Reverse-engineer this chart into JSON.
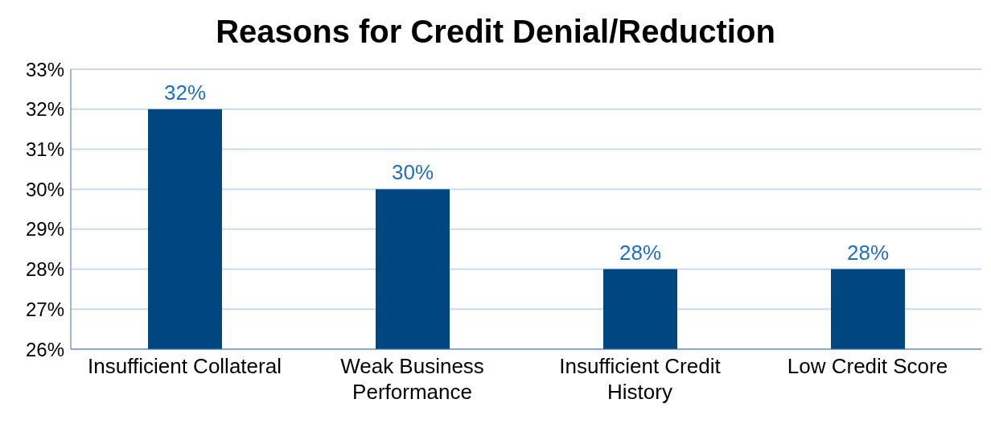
{
  "chart_data": {
    "type": "bar",
    "title": "Reasons for Credit Denial/Reduction",
    "categories": [
      "Insufficient Collateral",
      "Weak Business Performance",
      "Insufficient Credit History",
      "Low Credit Score"
    ],
    "values": [
      32,
      30,
      28,
      28
    ],
    "color": "#00467f",
    "value_labels": [
      "32%",
      "30%",
      "28%",
      "28%"
    ],
    "ylim": [
      26,
      33
    ],
    "yticks": [
      {
        "value": 26,
        "label": "26%"
      },
      {
        "value": 27,
        "label": "27%"
      },
      {
        "value": 28,
        "label": "28%"
      },
      {
        "value": 29,
        "label": "29%"
      },
      {
        "value": 30,
        "label": "30%"
      },
      {
        "value": 31,
        "label": "31%"
      },
      {
        "value": 32,
        "label": "32%"
      },
      {
        "value": 33,
        "label": "33%"
      }
    ],
    "grid": "y",
    "legend": false
  }
}
